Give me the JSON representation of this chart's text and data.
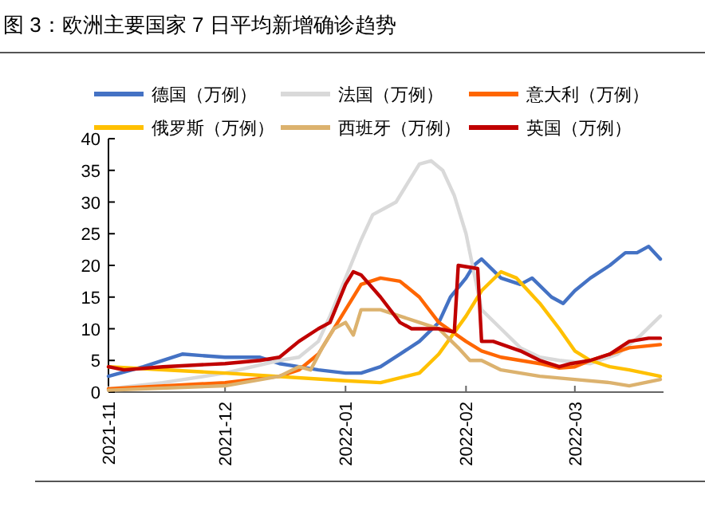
{
  "chart_data": {
    "type": "line",
    "title": "图 3：欧洲主要国家 7 日平均新增确诊趋势",
    "legend": "top",
    "xlim": [
      "2021-11-01",
      "2022-03-23"
    ],
    "xticks": [
      "2021-11",
      "2021-12",
      "2022-01",
      "2022-02",
      "2022-03"
    ],
    "ylim": [
      0,
      40
    ],
    "yticks": [
      0,
      5,
      10,
      15,
      20,
      25,
      30,
      35,
      40
    ],
    "series": [
      {
        "name": "德国（万例）",
        "color": "#4472c4",
        "x": [
          "2021-11-01",
          "2021-11-10",
          "2021-11-20",
          "2021-12-01",
          "2021-12-10",
          "2021-12-15",
          "2021-12-20",
          "2021-12-25",
          "2022-01-01",
          "2022-01-05",
          "2022-01-10",
          "2022-01-15",
          "2022-01-20",
          "2022-01-25",
          "2022-01-28",
          "2022-02-01",
          "2022-02-03",
          "2022-02-05",
          "2022-02-10",
          "2022-02-15",
          "2022-02-18",
          "2022-02-23",
          "2022-02-26",
          "2022-03-01",
          "2022-03-05",
          "2022-03-10",
          "2022-03-14",
          "2022-03-17",
          "2022-03-20",
          "2022-03-23"
        ],
        "values": [
          2.5,
          4,
          6,
          5.5,
          5.5,
          4.5,
          4,
          3.5,
          3,
          3,
          4,
          6,
          8,
          11,
          15,
          18,
          20,
          21,
          18,
          17,
          18,
          15,
          14,
          16,
          18,
          20,
          22,
          22,
          23,
          21
        ]
      },
      {
        "name": "法国（万例）",
        "color": "#d9d9d9",
        "x": [
          "2021-11-01",
          "2021-11-15",
          "2021-12-01",
          "2021-12-15",
          "2021-12-20",
          "2021-12-25",
          "2021-12-28",
          "2022-01-01",
          "2022-01-05",
          "2022-01-08",
          "2022-01-11",
          "2022-01-14",
          "2022-01-17",
          "2022-01-20",
          "2022-01-23",
          "2022-01-26",
          "2022-01-29",
          "2022-02-01",
          "2022-02-05",
          "2022-02-10",
          "2022-02-15",
          "2022-02-20",
          "2022-02-25",
          "2022-03-05",
          "2022-03-12",
          "2022-03-18",
          "2022-03-23"
        ],
        "values": [
          0.5,
          1.5,
          3,
          5,
          5.5,
          8,
          12,
          18,
          24,
          28,
          29,
          30,
          33,
          36,
          36.5,
          35,
          31,
          25,
          13,
          10,
          7,
          5.5,
          5,
          4.5,
          6,
          9,
          12
        ]
      },
      {
        "name": "意大利（万例）",
        "color": "#ff6600",
        "x": [
          "2021-11-01",
          "2021-12-01",
          "2021-12-15",
          "2021-12-20",
          "2021-12-25",
          "2021-12-28",
          "2022-01-01",
          "2022-01-05",
          "2022-01-10",
          "2022-01-15",
          "2022-01-20",
          "2022-01-25",
          "2022-02-01",
          "2022-02-05",
          "2022-02-10",
          "2022-02-15",
          "2022-02-20",
          "2022-02-25",
          "2022-03-01",
          "2022-03-05",
          "2022-03-10",
          "2022-03-15",
          "2022-03-23"
        ],
        "values": [
          0.5,
          1.5,
          2.5,
          3.5,
          6,
          9,
          13,
          17,
          18,
          17.5,
          15,
          11,
          8,
          6.5,
          5.5,
          5,
          4.5,
          3.8,
          4,
          5,
          6,
          7,
          7.5
        ]
      },
      {
        "name": "俄罗斯（万例）",
        "color": "#ffc000",
        "x": [
          "2021-11-01",
          "2021-12-01",
          "2022-01-01",
          "2022-01-10",
          "2022-01-20",
          "2022-01-25",
          "2022-02-01",
          "2022-02-05",
          "2022-02-10",
          "2022-02-14",
          "2022-02-20",
          "2022-02-25",
          "2022-03-01",
          "2022-03-05",
          "2022-03-10",
          "2022-03-15",
          "2022-03-23"
        ],
        "values": [
          4,
          3,
          1.8,
          1.5,
          3,
          6,
          12,
          16,
          19,
          18,
          14,
          10,
          6.5,
          5,
          4,
          3.5,
          2.5
        ]
      },
      {
        "name": "西班牙（万例）",
        "color": "#dcb26e",
        "x": [
          "2021-11-01",
          "2021-12-01",
          "2021-12-15",
          "2021-12-20",
          "2021-12-23",
          "2021-12-26",
          "2021-12-29",
          "2022-01-01",
          "2022-01-03",
          "2022-01-05",
          "2022-01-10",
          "2022-01-15",
          "2022-01-20",
          "2022-01-25",
          "2022-01-30",
          "2022-02-02",
          "2022-02-05",
          "2022-02-10",
          "2022-02-15",
          "2022-02-20",
          "2022-03-01",
          "2022-03-10",
          "2022-03-15",
          "2022-03-23"
        ],
        "values": [
          0.3,
          1,
          2.5,
          4,
          3.5,
          7,
          10,
          11,
          9,
          13,
          13,
          12,
          11,
          10,
          7,
          5,
          5,
          3.5,
          3,
          2.5,
          2,
          1.5,
          1,
          2
        ]
      },
      {
        "name": "英国（万例）",
        "color": "#c00000",
        "x": [
          "2021-11-01",
          "2021-11-05",
          "2021-11-15",
          "2021-12-01",
          "2021-12-10",
          "2021-12-15",
          "2021-12-20",
          "2021-12-25",
          "2021-12-28",
          "2022-01-01",
          "2022-01-03",
          "2022-01-05",
          "2022-01-10",
          "2022-01-15",
          "2022-01-18",
          "2022-01-25",
          "2022-01-29",
          "2022-01-30",
          "2022-02-04",
          "2022-02-05",
          "2022-02-08",
          "2022-02-15",
          "2022-02-20",
          "2022-02-25",
          "2022-02-28",
          "2022-03-05",
          "2022-03-10",
          "2022-03-15",
          "2022-03-20",
          "2022-03-23"
        ],
        "values": [
          4,
          3.5,
          4,
          4.5,
          5,
          5.5,
          8,
          10,
          11,
          17,
          19,
          18.5,
          15,
          11,
          10,
          10,
          9.5,
          20,
          19.5,
          8,
          8,
          6.5,
          5,
          4,
          4.5,
          5,
          6,
          8,
          8.5,
          8.5
        ]
      }
    ]
  }
}
